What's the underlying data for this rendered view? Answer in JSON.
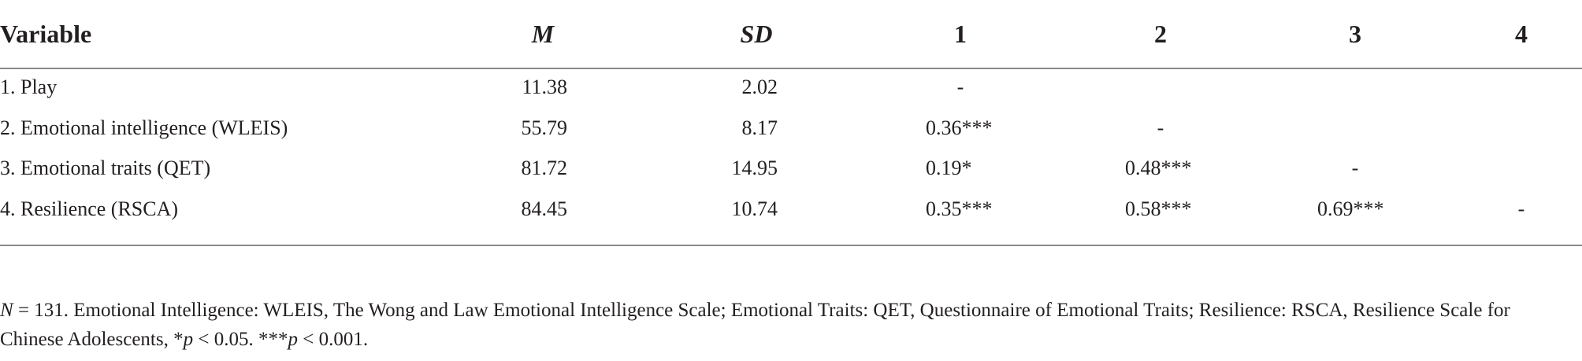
{
  "table": {
    "header": [
      "Variable",
      "M",
      "SD",
      "1",
      "2",
      "3",
      "4"
    ],
    "rows": [
      [
        "1. Play",
        "11.38",
        "2.02",
        "-"
      ],
      [
        "2. Emotional intelligence (WLEIS)",
        "55.79",
        "8.17",
        "0.36***",
        "-"
      ],
      [
        "3. Emotional traits (QET)",
        "81.72",
        "14.95",
        "0.19*",
        "0.48***",
        "-"
      ],
      [
        "4. Resilience (RSCA)",
        "84.45",
        "10.74",
        "0.35***",
        "0.58***",
        "0.69***",
        "-"
      ]
    ]
  },
  "footnote": [
    "N",
    " = 131. Emotional Intelligence: WLEIS, The Wong and Law Emotional Intelligence Scale; Emotional Traits: QET, Questionnaire of Emotional Traits; Resilience: RSCA, Resilience Scale for Chinese Adolescents, *",
    "p",
    " < 0.05. ***",
    "p",
    " < 0.001."
  ]
}
